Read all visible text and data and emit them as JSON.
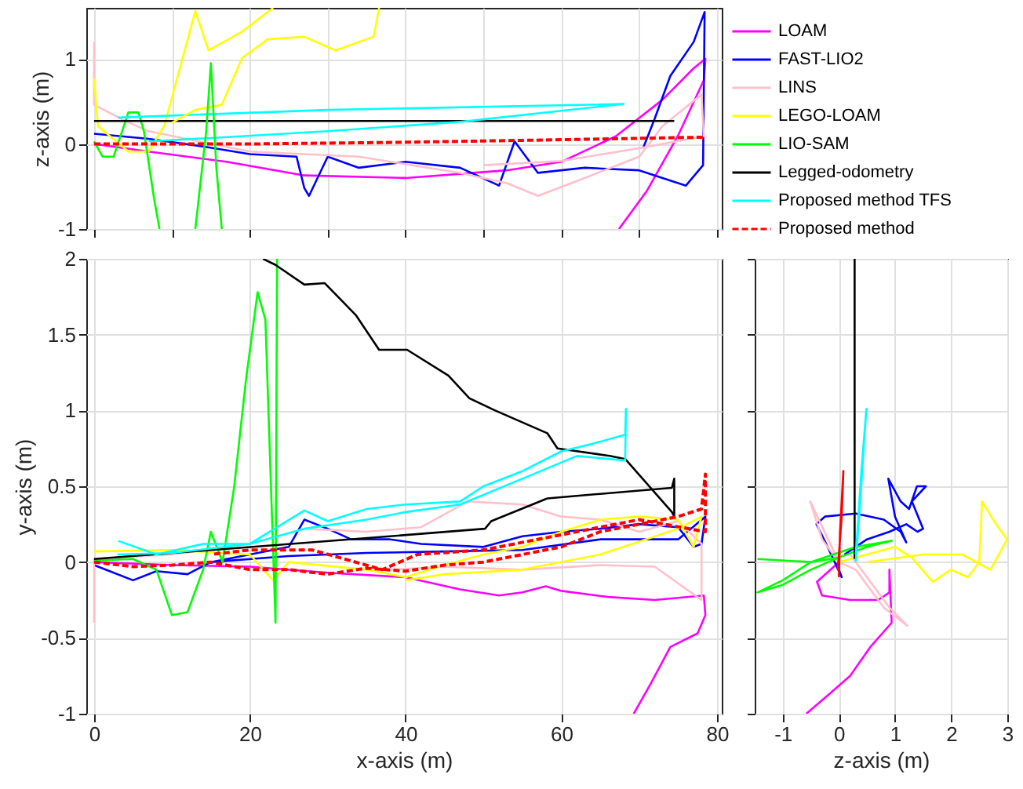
{
  "chart_data": [
    {
      "type": "line",
      "ylabel": "z-axis (m)",
      "xlim": [
        -1,
        80.6
      ],
      "ylim": [
        -1,
        1.6
      ],
      "xticks": [
        {
          "value": 0,
          "label": null
        },
        {
          "value": 10,
          "label": null
        },
        {
          "value": 20,
          "label": null
        },
        {
          "value": 30,
          "label": null
        },
        {
          "value": 40,
          "label": null
        },
        {
          "value": 50,
          "label": null
        },
        {
          "value": 60,
          "label": null
        },
        {
          "value": 70,
          "label": null
        },
        {
          "value": 80,
          "label": null
        }
      ],
      "yticks": [
        -1,
        0,
        1
      ],
      "grid": true,
      "tick_labels": "y",
      "legend": "right",
      "series": [
        {
          "name": "LOAM",
          "color": "#ff00ff",
          "line_style": "solid",
          "x": [
            0,
            7,
            17,
            27,
            40,
            53,
            60,
            67,
            73,
            77,
            78.5,
            78.3,
            75,
            71,
            67.4
          ],
          "values": [
            0,
            -0.09,
            -0.21,
            -0.37,
            -0.4,
            -0.31,
            -0.21,
            0.09,
            0.52,
            0.89,
            1.0,
            0.75,
            0.1,
            -0.55,
            -1.0
          ]
        },
        {
          "name": "FAST-LIO2",
          "color": "#0000ff",
          "line_style": "solid",
          "x": [
            0,
            7,
            14,
            20,
            26,
            27,
            27.6,
            30,
            34,
            40,
            47,
            52,
            54,
            57,
            63,
            70,
            76,
            78.2,
            78.4,
            77,
            74,
            72,
            70.5
          ],
          "values": [
            0.12,
            0.06,
            -0.03,
            -0.12,
            -0.15,
            -0.52,
            -0.61,
            -0.15,
            -0.28,
            -0.21,
            -0.28,
            -0.49,
            0.03,
            -0.34,
            -0.28,
            -0.31,
            -0.49,
            -0.25,
            1.55,
            1.2,
            0.8,
            0.3,
            -0.05
          ]
        },
        {
          "name": "LINS",
          "color": "#ffc0cb",
          "line_style": "solid",
          "x": [
            0,
            0,
            3.8,
            7,
            20,
            34,
            47,
            53,
            57,
            63,
            70,
            73,
            78,
            78.3,
            70,
            60,
            50
          ],
          "values": [
            1.2,
            0.46,
            0.28,
            0.15,
            -0.09,
            -0.15,
            -0.34,
            -0.46,
            -0.61,
            -0.4,
            -0.15,
            0.21,
            0.58,
            0.09,
            -0.05,
            -0.2,
            -0.25
          ]
        },
        {
          "name": "LEGO-LOAM",
          "color": "#ffff00",
          "line_style": "solid",
          "x": [
            0,
            0.5,
            4.4,
            7,
            9,
            13,
            14.7,
            19,
            23
          ],
          "values": [
            0.77,
            0.21,
            -0.09,
            -0.09,
            0.21,
            1.56,
            1.1,
            1.32,
            1.6
          ]
        },
        {
          "name": "LIO-SAM",
          "color": "#00ff00",
          "line_style": "solid",
          "x": [
            0,
            1.1,
            2.5,
            4.4,
            5.7,
            6.4,
            7.7,
            8.4
          ],
          "values": [
            0.03,
            -0.15,
            -0.15,
            0.37,
            0.37,
            0.15,
            -0.64,
            -1.0
          ]
        },
        {
          "name": "Legged-odometry",
          "color": "#000000",
          "line_style": "solid",
          "x": [
            0,
            74.5
          ],
          "values": [
            0.27,
            0.27
          ]
        },
        {
          "name": "Proposed method TFS",
          "color": "#00ffff",
          "line_style": "solid",
          "x": [
            3.1,
            30,
            68,
            60,
            47,
            30,
            15,
            7
          ],
          "values": [
            0.31,
            0.4,
            0.47,
            0.39,
            0.26,
            0.15,
            0.07,
            0.03
          ]
        },
        {
          "name": "Proposed method",
          "color": "#ff0000",
          "line_style": "dashed",
          "x": [
            0,
            20,
            40,
            60,
            78.6
          ],
          "values": [
            0.0,
            0.0,
            0.02,
            0.05,
            0.08
          ]
        },
        {
          "color": "#ffff00",
          "line_style": "solid",
          "x": [
            10,
            13,
            16.4,
            19,
            22.3,
            27,
            31,
            35.9,
            36.6
          ],
          "values": [
            0.25,
            0.4,
            0.46,
            1.01,
            1.23,
            1.26,
            1.1,
            1.26,
            1.6
          ]
        },
        {
          "color": "#00ff00",
          "line_style": "solid",
          "x": [
            13,
            14.4,
            15,
            15.7,
            16.4
          ],
          "values": [
            -1.0,
            0.15,
            0.95,
            -0.28,
            -1.0
          ]
        }
      ]
    },
    {
      "type": "line",
      "xlabel": "x-axis (m)",
      "ylabel": "y-axis (m)",
      "xlim": [
        -1,
        80.6
      ],
      "ylim": [
        -1,
        2
      ],
      "xticks": [
        0,
        20,
        40,
        60,
        80
      ],
      "yticks": [
        -1,
        -0.5,
        0,
        0.5,
        1,
        1.5,
        2
      ],
      "grid": true,
      "series": [
        {
          "color": "#ff00ff",
          "line_style": "solid",
          "x": [
            0,
            10,
            20,
            30,
            40,
            47,
            52,
            55,
            58,
            60,
            66,
            72,
            78.3,
            78.5,
            77.5,
            74,
            71.5,
            69.3
          ],
          "values": [
            0,
            -0.02,
            -0.03,
            -0.07,
            -0.1,
            -0.18,
            -0.22,
            -0.2,
            -0.16,
            -0.19,
            -0.23,
            -0.25,
            -0.22,
            -0.35,
            -0.47,
            -0.56,
            -0.8,
            -1.0
          ]
        },
        {
          "color": "#0000ff",
          "line_style": "solid",
          "x": [
            0,
            2,
            5,
            8,
            12,
            15,
            20,
            25,
            27,
            30,
            33,
            38,
            42,
            50,
            55,
            60,
            65,
            70,
            75,
            77,
            78,
            78.5,
            75,
            65,
            55,
            45,
            35,
            25,
            15
          ],
          "values": [
            -0.02,
            -0.06,
            -0.12,
            -0.06,
            -0.08,
            0,
            0.05,
            0.1,
            0.28,
            0.22,
            0.15,
            0.15,
            0.12,
            0.1,
            0.17,
            0.2,
            0.22,
            0.25,
            0.23,
            0.1,
            0.12,
            0.3,
            0.15,
            0.15,
            0.08,
            0.07,
            0.06,
            0.04,
            0.0
          ]
        },
        {
          "color": "#ffc0cb",
          "line_style": "solid",
          "x": [
            0,
            0,
            10,
            20,
            27,
            35,
            42,
            48,
            55,
            60,
            65,
            70,
            75,
            78,
            78,
            72,
            65,
            55,
            45,
            38
          ],
          "values": [
            -0.4,
            0.02,
            0.05,
            0.12,
            0.22,
            0.2,
            0.23,
            0.4,
            0.38,
            0.3,
            0.28,
            0.2,
            0.27,
            0.12,
            -0.25,
            -0.03,
            -0.02,
            -0.05,
            -0.03,
            -0.05
          ]
        },
        {
          "color": "#ffff00",
          "line_style": "solid",
          "x": [
            0,
            10,
            20,
            23,
            25,
            35,
            40,
            45,
            50,
            55,
            60,
            65,
            70,
            75,
            77,
            78,
            75,
            65,
            55,
            45,
            40
          ],
          "values": [
            0.07,
            0.08,
            0.05,
            -0.12,
            0,
            -0.05,
            -0.1,
            -0.02,
            0.05,
            0.1,
            0.2,
            0.28,
            0.3,
            0.28,
            0.1,
            0.3,
            0.22,
            0.05,
            -0.05,
            -0.08,
            -0.12
          ]
        },
        {
          "color": "#00ff00",
          "line_style": "solid",
          "x": [
            0,
            5,
            8,
            10,
            12,
            14,
            15,
            16.5,
            18,
            19.5,
            21,
            22,
            23.3,
            23.5
          ],
          "values": [
            0.01,
            0.02,
            -0.05,
            -0.35,
            -0.33,
            -0.05,
            0.2,
            0,
            0.5,
            1.2,
            1.78,
            1.6,
            -0.4,
            2.0
          ]
        },
        {
          "color": "#000000",
          "line_style": "solid",
          "x": [
            0,
            35.4,
            50.2,
            51,
            58.2,
            74.2,
            74.5,
            74.5,
            74.2,
            68.2,
            66.2,
            59.5,
            58.2,
            51.5,
            48.2,
            45.5,
            40.2,
            36.6,
            33.6,
            29.6,
            27,
            23.3,
            21.7
          ],
          "values": [
            0.02,
            0.16,
            0.22,
            0.27,
            0.42,
            0.49,
            0.55,
            0.3,
            0.33,
            0.68,
            0.7,
            0.75,
            0.85,
            1.0,
            1.08,
            1.23,
            1.4,
            1.4,
            1.63,
            1.84,
            1.83,
            1.96,
            2.0
          ]
        },
        {
          "color": "#00ffff",
          "line_style": "solid",
          "x": [
            3.1,
            8,
            14,
            20,
            27,
            30,
            35,
            40,
            47,
            50,
            55,
            60,
            64,
            68.2,
            68.3,
            68.2,
            62,
            55,
            47,
            40,
            35,
            27,
            20,
            10,
            3
          ],
          "values": [
            0.14,
            0.05,
            0.12,
            0.12,
            0.34,
            0.27,
            0.35,
            0.38,
            0.4,
            0.5,
            0.6,
            0.73,
            0.78,
            0.84,
            1.01,
            0.67,
            0.7,
            0.55,
            0.38,
            0.33,
            0.28,
            0.22,
            0.12,
            0.06,
            0.05
          ]
        },
        {
          "color": "#ff0000",
          "line_style": "dashed",
          "x": [
            0,
            5,
            10,
            15,
            20,
            25,
            30,
            35,
            40,
            45,
            50,
            55,
            60,
            65,
            70,
            75,
            78,
            78.5,
            78.5,
            70,
            62,
            50,
            41.5,
            37,
            28,
            20,
            15
          ],
          "values": [
            0,
            -0.03,
            -0.02,
            0,
            -0.05,
            -0.05,
            -0.08,
            -0.04,
            -0.06,
            -0.02,
            0,
            0.05,
            0.1,
            0.2,
            0.25,
            0.3,
            0.35,
            0.58,
            0.2,
            0.28,
            0.2,
            0.08,
            0.05,
            -0.05,
            0.08,
            0.08,
            0.05
          ]
        }
      ]
    },
    {
      "type": "line",
      "xlabel": "z-axis (m)",
      "xlim": [
        -1.5,
        3
      ],
      "ylim": [
        -1,
        2
      ],
      "xticks": [
        -1,
        0,
        1,
        2,
        3
      ],
      "yticks": [
        -1,
        -0.5,
        0,
        0.5,
        1,
        1.5,
        2
      ],
      "grid": true,
      "tick_labels": "x",
      "series": [
        {
          "color": "#ff00ff",
          "line_style": "solid",
          "x": [
            0,
            -0.39,
            -0.3,
            0.2,
            0.7,
            0.9,
            0.9,
            0.94,
            0.56,
            0.2,
            -0.2,
            -0.58
          ],
          "values": [
            0,
            -0.13,
            -0.22,
            -0.25,
            -0.25,
            -0.2,
            -0.05,
            -0.4,
            -0.56,
            -0.75,
            -0.88,
            -1.0
          ]
        },
        {
          "color": "#0000ff",
          "line_style": "solid",
          "x": [
            0,
            0.05,
            -0.2,
            -0.4,
            -0.25,
            0.3,
            0.8,
            1.1,
            1.2,
            1.0,
            0.88,
            1.1,
            1.25,
            1.39,
            1.55,
            1.3,
            1.5,
            1.4,
            1.2,
            0.9,
            0.5,
            0.1
          ],
          "values": [
            -0.05,
            -0.1,
            0.1,
            0.25,
            0.3,
            0.32,
            0.28,
            0.2,
            0.13,
            0.3,
            0.55,
            0.4,
            0.35,
            0.5,
            0.5,
            0.4,
            0.22,
            0.2,
            0.25,
            0.2,
            0.15,
            0.05
          ]
        },
        {
          "color": "#ffc0cb",
          "line_style": "solid",
          "x": [
            0,
            -0.51,
            -0.3,
            0,
            0.3,
            0.5,
            0.8,
            1.22,
            0.9,
            0.5,
            0.2
          ],
          "values": [
            0,
            0.4,
            0.15,
            0,
            -0.05,
            -0.15,
            -0.3,
            -0.42,
            -0.3,
            -0.1,
            0.05
          ]
        },
        {
          "color": "#ffff00",
          "line_style": "solid",
          "x": [
            0,
            0.5,
            1.0,
            1.3,
            1.67,
            2.0,
            2.3,
            2.5,
            2.55,
            2.8,
            3.0,
            2.7,
            2.2,
            1.5,
            0.5
          ],
          "values": [
            0,
            0.05,
            0.1,
            0.03,
            -0.13,
            -0.05,
            -0.1,
            0,
            0.4,
            0.25,
            0.15,
            -0.05,
            0.05,
            0.05,
            0
          ]
        },
        {
          "color": "#00ff00",
          "line_style": "solid",
          "x": [
            0,
            0.5,
            0.94,
            0.3,
            -0.5,
            -1.0,
            -1.45,
            -1.0,
            -0.5,
            0,
            -0.5,
            -1.45
          ],
          "values": [
            0.03,
            0.1,
            0.14,
            0.1,
            0,
            -0.12,
            -0.2,
            -0.15,
            -0.05,
            0.03,
            0,
            0.02
          ]
        },
        {
          "color": "#000000",
          "line_style": "solid",
          "x": [
            0.28,
            0.28
          ],
          "values": [
            0.02,
            2.0
          ]
        },
        {
          "color": "#00ffff",
          "line_style": "solid",
          "x": [
            0.3,
            0.38,
            0.45,
            0.49,
            0.4,
            0.33,
            0.3
          ],
          "values": [
            0,
            0.4,
            0.8,
            1.01,
            0.6,
            0.2,
            0.05
          ]
        },
        {
          "color": "#ff0000",
          "line_style": "solid",
          "x": [
            0,
            0.02,
            0.08,
            0.05,
            -0.02
          ],
          "values": [
            -0.1,
            0.2,
            0.6,
            0.3,
            -0.05
          ]
        }
      ]
    }
  ]
}
